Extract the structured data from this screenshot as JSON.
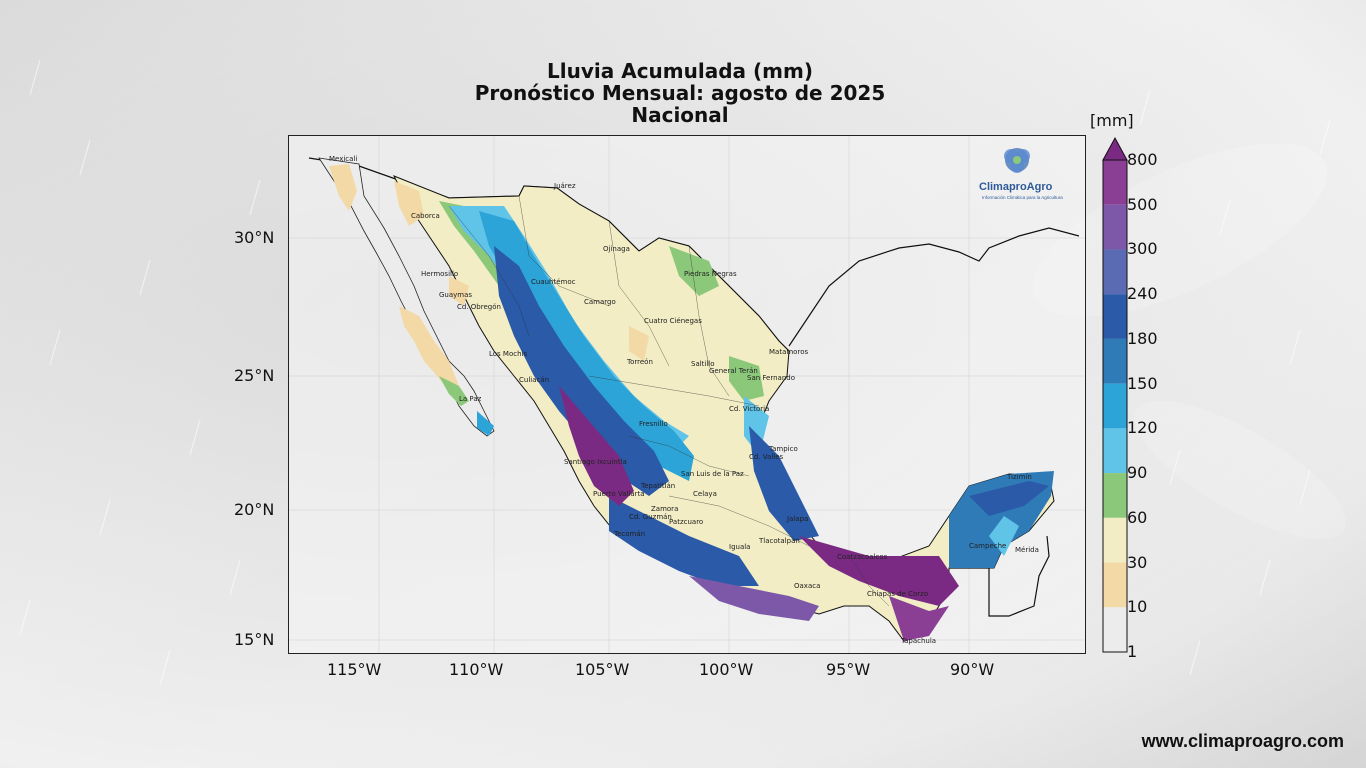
{
  "title": {
    "line1": "Lluvia Acumulada (mm)",
    "line2": "Pronóstico Mensual: agosto de 2025",
    "line3": "Nacional"
  },
  "axes": {
    "lon_ticks": [
      "115°W",
      "110°W",
      "105°W",
      "100°W",
      "95°W",
      "90°W"
    ],
    "lat_ticks": [
      "30°N",
      "25°N",
      "20°N",
      "15°N"
    ]
  },
  "colorbar": {
    "unit": "[mm]",
    "levels": [
      "800",
      "500",
      "300",
      "240",
      "180",
      "150",
      "120",
      "90",
      "60",
      "30",
      "10",
      "1"
    ],
    "colors": [
      "#7b2a84",
      "#8a3f95",
      "#7d58a8",
      "#5a6ab3",
      "#2a5aa8",
      "#2f7bb8",
      "#2ca4d8",
      "#60c3e8",
      "#8cc87a",
      "#f2edc4",
      "#f3d9a6",
      "#ececec"
    ]
  },
  "logo": {
    "name": "ClimaproAgro",
    "tagline": "Información Climática para la Agricultura"
  },
  "cities": [
    "Mexicali",
    "Juárez",
    "Caborca",
    "Hermosillo",
    "Ojinaga",
    "Guaymas",
    "Cd. Obregón",
    "Cuauhtémoc",
    "Camargo",
    "Piedras Negras",
    "Cuatro Ciénegas",
    "Matamoros",
    "Los Mochis",
    "Torreón",
    "Saltillo",
    "General Terán",
    "San Fernando",
    "Culiacán",
    "La Paz",
    "Cd. Victoria",
    "Fresnillo",
    "Tampico",
    "Cd. Valles",
    "Santiago Ixcuintla",
    "San Luis de la Paz",
    "Tepatitlán",
    "Celaya",
    "Puerto Vallarta",
    "Zamora",
    "Patzcuaro",
    "Cd. Guzmán",
    "Tecomán",
    "Iguala",
    "Tlacotalpan",
    "Oaxaca",
    "Coatzacoalcos",
    "Campeche",
    "Chiapas de Corzo",
    "Tapachula",
    "Tizimín",
    "Mérida",
    "Jalapa"
  ],
  "footer": {
    "url": "www.climaproagro.com"
  }
}
